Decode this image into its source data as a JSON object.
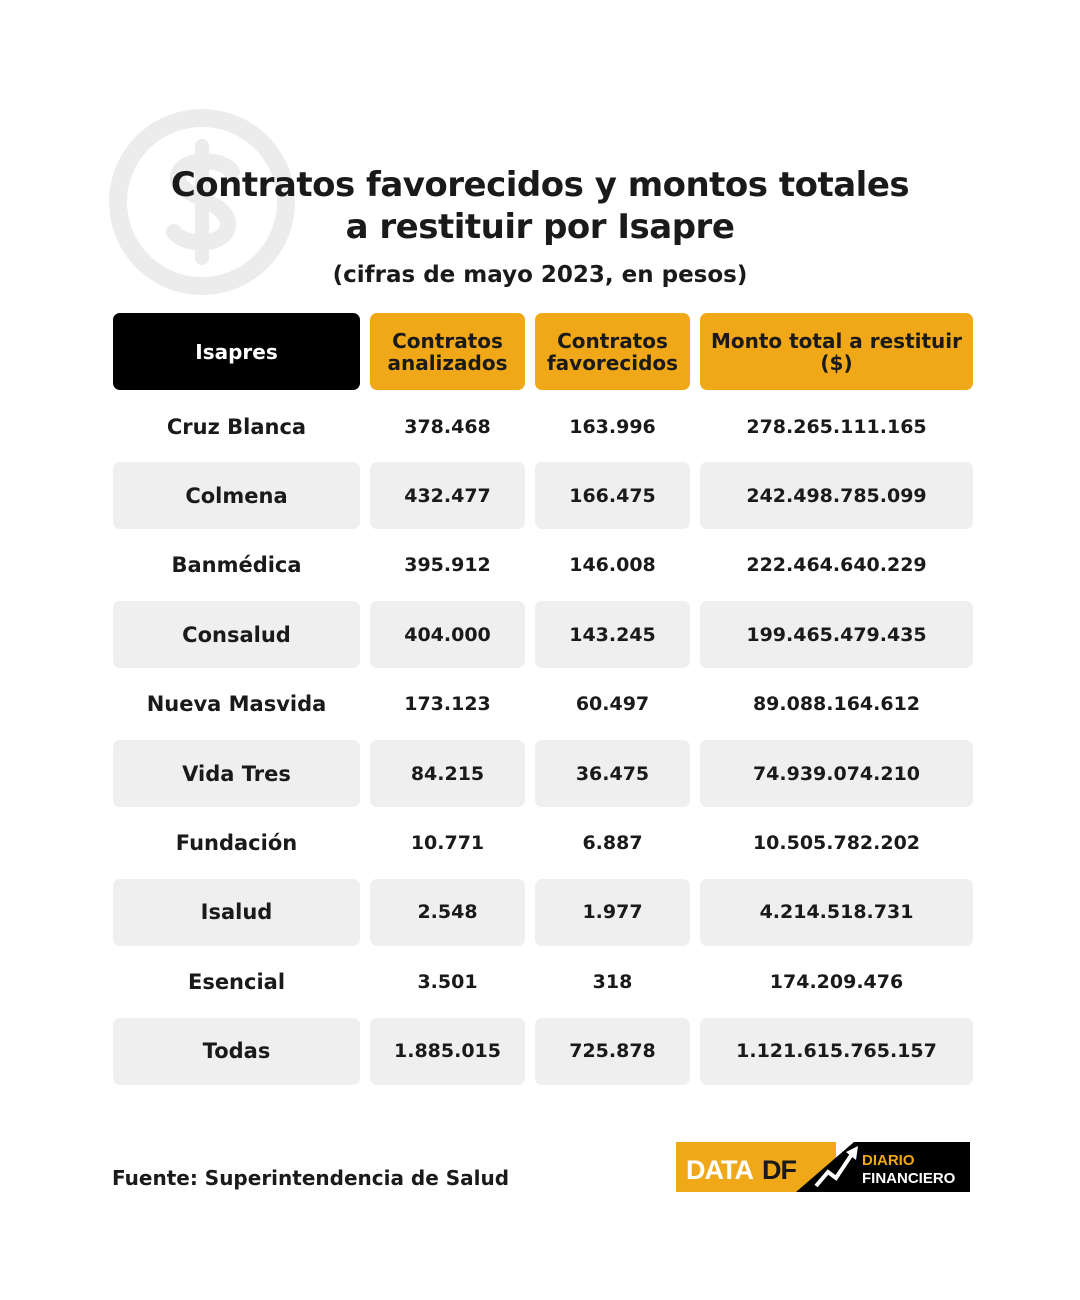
{
  "title_lines": [
    "Contratos favorecidos y montos totales",
    "a restituir por Isapre"
  ],
  "subtitle": "(cifras de mayo 2023, en pesos)",
  "chart_data": {
    "type": "table",
    "columns": [
      "Isapres",
      "Contratos analizados",
      "Contratos favorecidos",
      "Monto total a restituir ($)"
    ],
    "rows": [
      [
        "Cruz Blanca",
        "378.468",
        "163.996",
        "278.265.111.165"
      ],
      [
        "Colmena",
        "432.477",
        "166.475",
        "242.498.785.099"
      ],
      [
        "Banmédica",
        "395.912",
        "146.008",
        "222.464.640.229"
      ],
      [
        "Consalud",
        "404.000",
        "143.245",
        "199.465.479.435"
      ],
      [
        "Nueva Masvida",
        "173.123",
        "60.497",
        "89.088.164.612"
      ],
      [
        "Vida Tres",
        "84.215",
        "36.475",
        "74.939.074.210"
      ],
      [
        "Fundación",
        "10.771",
        "6.887",
        "10.505.782.202"
      ],
      [
        "Isalud",
        "2.548",
        "1.977",
        "4.214.518.731"
      ],
      [
        "Esencial",
        "3.501",
        "318",
        "174.209.476"
      ],
      [
        "Todas",
        "1.885.015",
        "725.878",
        "1.121.615.765.157"
      ]
    ]
  },
  "source": "Fuente: Superintendencia de Salud",
  "logo": {
    "data_text": "DATA",
    "df_text": "DF",
    "brand_line1": "DIARIO",
    "brand_line2": "FINANCIERO"
  },
  "decor_icon": "dollar-coin-icon",
  "colors": {
    "accent": "#f0a818",
    "header_dark": "#000000",
    "row_shade": "#efefef",
    "text": "#1a1a1a"
  }
}
